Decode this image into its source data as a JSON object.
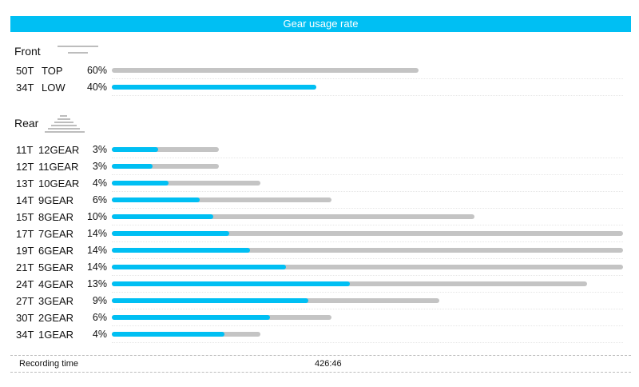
{
  "header": {
    "title": "Gear usage rate"
  },
  "front": {
    "title": "Front",
    "rows": [
      {
        "teeth": "50T",
        "gear": "TOP",
        "pct_label": "60%",
        "usage": 0.6,
        "used_fraction": 0.0
      },
      {
        "teeth": "34T",
        "gear": "LOW",
        "pct_label": "40%",
        "usage": 0.4,
        "used_fraction": 1.0
      }
    ]
  },
  "rear": {
    "title": "Rear",
    "rows": [
      {
        "teeth": "11T",
        "gear": "12GEAR",
        "pct_label": "3%",
        "usage": 0.21,
        "used_fraction": 0.43
      },
      {
        "teeth": "12T",
        "gear": "11GEAR",
        "pct_label": "3%",
        "usage": 0.21,
        "used_fraction": 0.38
      },
      {
        "teeth": "13T",
        "gear": "10GEAR",
        "pct_label": "4%",
        "usage": 0.29,
        "used_fraction": 0.38
      },
      {
        "teeth": "14T",
        "gear": "9GEAR",
        "pct_label": "6%",
        "usage": 0.43,
        "used_fraction": 0.4
      },
      {
        "teeth": "15T",
        "gear": "8GEAR",
        "pct_label": "10%",
        "usage": 0.71,
        "used_fraction": 0.28
      },
      {
        "teeth": "17T",
        "gear": "7GEAR",
        "pct_label": "14%",
        "usage": 1.0,
        "used_fraction": 0.23
      },
      {
        "teeth": "19T",
        "gear": "6GEAR",
        "pct_label": "14%",
        "usage": 1.0,
        "used_fraction": 0.27
      },
      {
        "teeth": "21T",
        "gear": "5GEAR",
        "pct_label": "14%",
        "usage": 1.0,
        "used_fraction": 0.34
      },
      {
        "teeth": "24T",
        "gear": "4GEAR",
        "pct_label": "13%",
        "usage": 0.93,
        "used_fraction": 0.5
      },
      {
        "teeth": "27T",
        "gear": "3GEAR",
        "pct_label": "9%",
        "usage": 0.64,
        "used_fraction": 0.6
      },
      {
        "teeth": "30T",
        "gear": "2GEAR",
        "pct_label": "6%",
        "usage": 0.43,
        "used_fraction": 0.72
      },
      {
        "teeth": "34T",
        "gear": "1GEAR",
        "pct_label": "4%",
        "usage": 0.29,
        "used_fraction": 0.76
      }
    ]
  },
  "recording": {
    "label": "Recording time",
    "value": "426:46"
  },
  "colors": {
    "accent": "#00bff3",
    "track": "#c4c4c4"
  }
}
